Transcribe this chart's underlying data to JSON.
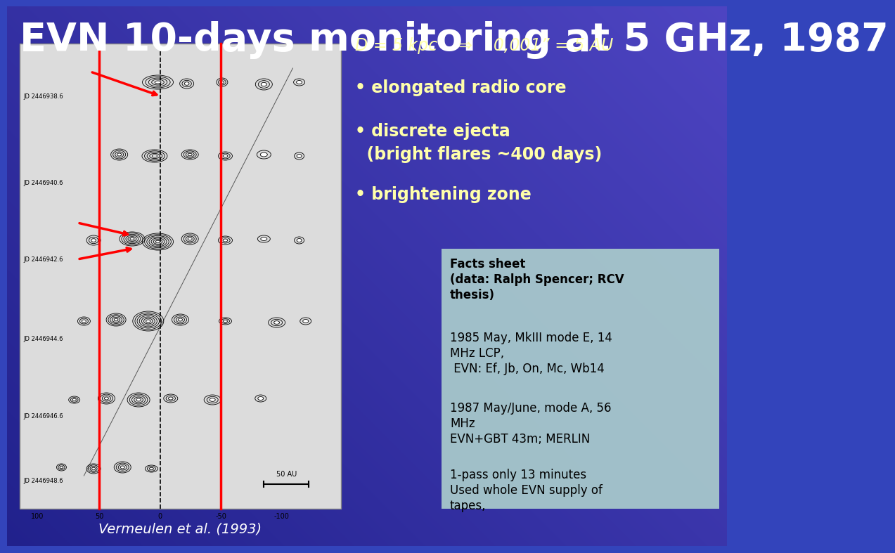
{
  "title": "EVN 10-days monitoring at 5 GHz, 1987",
  "title_color": "#FFFFFF",
  "title_fontsize": 40,
  "bg_color": "#3344BB",
  "subtitle_line1": "D = 5 kpc    ⇒    0,001” = 5 AU",
  "subtitle_color": "#FFFFAA",
  "bullet_color": "#FFFFAA",
  "bullets": [
    "• elongated radio core",
    "• discrete ejecta\n  (bright flares ~400 days)",
    "• brightening zone"
  ],
  "bullet_fontsize": 17,
  "facts_box_color": "#AACCCC",
  "facts_title": "Facts sheet\n(data: Ralph Spencer; RCV\nthesis)",
  "facts_line1": "1985 May, MkIII mode E, 14\nMHz LCP,\n EVN: Ef, Jb, On, Mc, Wb14",
  "facts_line2": "1987 May/June, mode A, 56\nMHz\nEVN+GBT 43m; MERLIN",
  "facts_line3": "1-pass only 13 minutes\nUsed whole EVN supply of\ntapes,",
  "caption": "Vermeulen et al. (1993)",
  "caption_color": "#FFFFFF",
  "jd_labels": [
    "JD 2446938.6",
    "JD 2446940.6",
    "JD 2446942.6",
    "JD 2446944.6",
    "JD 2446946.6",
    "JD 2446948.6"
  ],
  "x_tick_labels": [
    "100",
    "50",
    "0",
    "-50",
    "-100"
  ],
  "scale_label": "50 AU"
}
